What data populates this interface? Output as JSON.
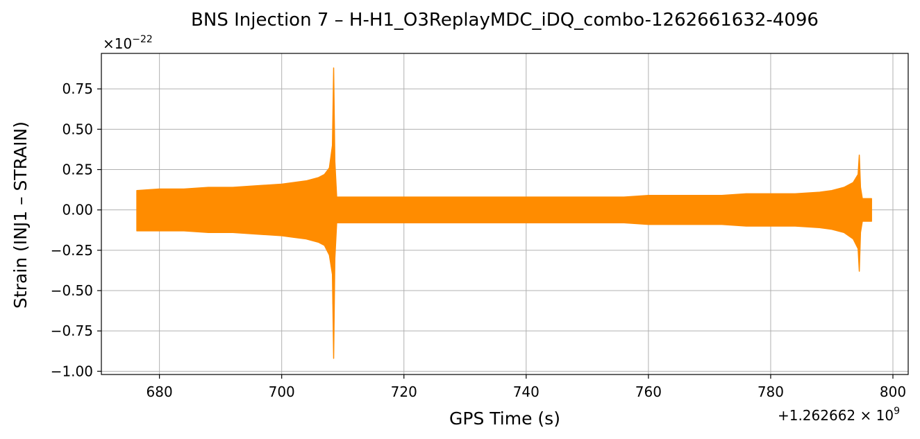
{
  "chart_data": {
    "type": "line",
    "title": "BNS Injection 7 – H-H1_O3ReplayMDC_iDQ_combo-1262661632-4096",
    "xlabel": "GPS Time (s)",
    "ylabel": "Strain (INJ1 – STRAIN)",
    "x_offset_label": "+1.262662 × 10",
    "x_offset_exponent": "9",
    "y_multiplier_label": "×10",
    "y_multiplier_exponent": "−22",
    "xlim": [
      670.5,
      802.5
    ],
    "ylim": [
      -1.02,
      0.97
    ],
    "grid": true,
    "x_ticks": [
      680,
      700,
      720,
      740,
      760,
      780,
      800
    ],
    "x_tick_labels": [
      "680",
      "700",
      "720",
      "740",
      "760",
      "780",
      "800"
    ],
    "y_ticks": [
      0.75,
      0.5,
      0.25,
      0.0,
      -0.25,
      -0.5,
      -0.75,
      -1.0
    ],
    "y_tick_labels": [
      "0.75",
      "0.50",
      "0.25",
      "0.00",
      "−0.25",
      "−0.50",
      "−0.75",
      "−1.00"
    ],
    "series": [
      {
        "color": "#ff8c00",
        "x": [
          676.3,
          680,
          684,
          688,
          692,
          696,
          700,
          702,
          704,
          706,
          707,
          707.8,
          708.3,
          708.5,
          708.7,
          709,
          712,
          716,
          720,
          724,
          728,
          732,
          736,
          740,
          744,
          748,
          752,
          756,
          760,
          764,
          768,
          772,
          776,
          780,
          784,
          788,
          790,
          792,
          793.5,
          794.3,
          794.5,
          794.7,
          795,
          796.5
        ],
        "y_upper": [
          0.12,
          0.13,
          0.13,
          0.14,
          0.14,
          0.15,
          0.16,
          0.17,
          0.18,
          0.2,
          0.22,
          0.26,
          0.4,
          0.88,
          0.3,
          0.08,
          0.08,
          0.08,
          0.08,
          0.08,
          0.08,
          0.08,
          0.08,
          0.08,
          0.08,
          0.08,
          0.08,
          0.08,
          0.09,
          0.09,
          0.09,
          0.09,
          0.1,
          0.1,
          0.1,
          0.11,
          0.12,
          0.14,
          0.17,
          0.22,
          0.34,
          0.14,
          0.07,
          0.07
        ],
        "y_lower": [
          -0.13,
          -0.13,
          -0.13,
          -0.14,
          -0.14,
          -0.15,
          -0.16,
          -0.17,
          -0.18,
          -0.2,
          -0.22,
          -0.28,
          -0.4,
          -0.92,
          -0.3,
          -0.08,
          -0.08,
          -0.08,
          -0.08,
          -0.08,
          -0.08,
          -0.08,
          -0.08,
          -0.08,
          -0.08,
          -0.08,
          -0.08,
          -0.08,
          -0.09,
          -0.09,
          -0.09,
          -0.09,
          -0.1,
          -0.1,
          -0.1,
          -0.11,
          -0.12,
          -0.14,
          -0.18,
          -0.24,
          -0.38,
          -0.14,
          -0.07,
          -0.07
        ]
      }
    ]
  }
}
